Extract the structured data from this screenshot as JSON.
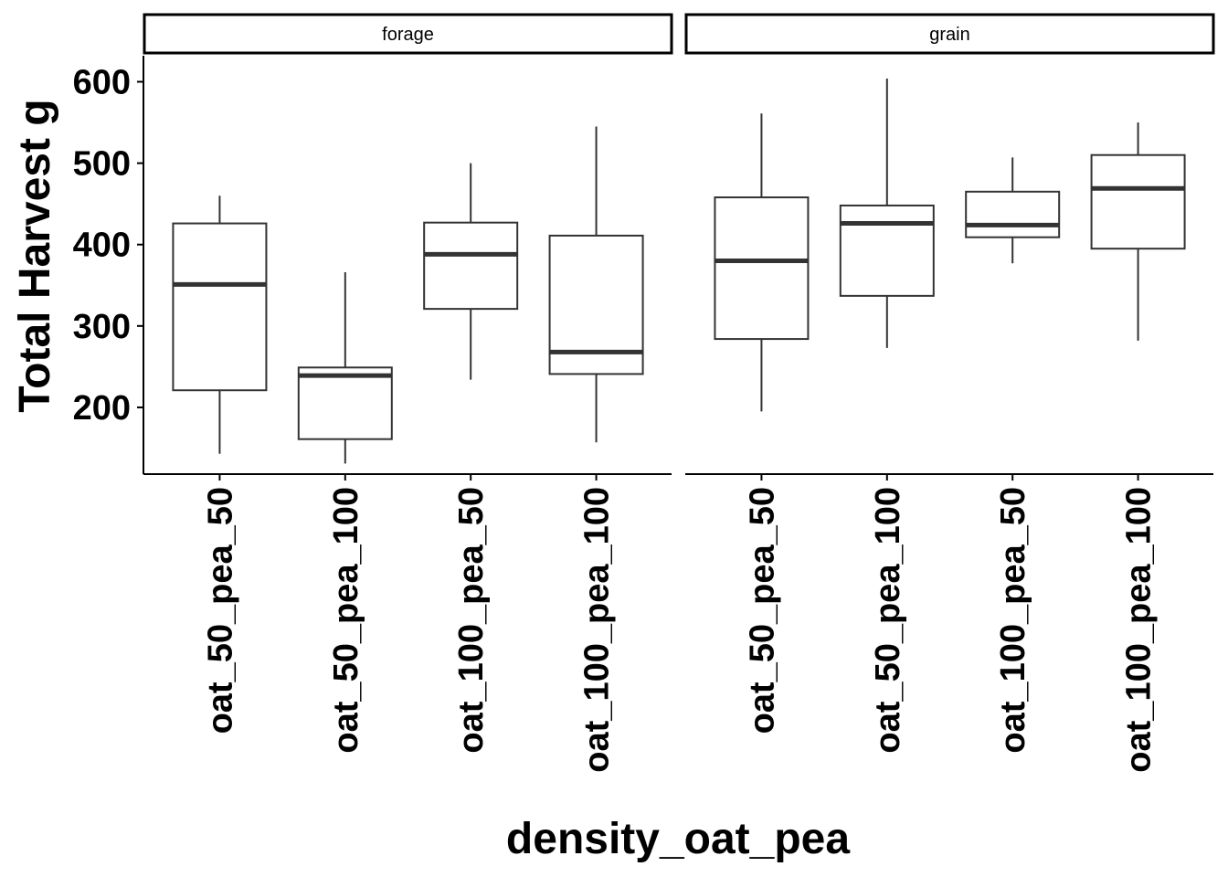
{
  "chart_data": {
    "type": "boxplot",
    "xlabel": "density_oat_pea",
    "ylabel": "Total Harvest g",
    "ylim": [
      118,
      632
    ],
    "yticks": [
      200,
      300,
      400,
      500,
      600
    ],
    "grid": false,
    "legend": "none",
    "categories": [
      "oat_50_pea_50",
      "oat_50_pea_100",
      "oat_100_pea_50",
      "oat_100_pea_100"
    ],
    "facets": [
      {
        "label": "forage",
        "boxes": [
          {
            "category": "oat_50_pea_50",
            "min": 143,
            "q1": 221,
            "median": 351,
            "q3": 426,
            "max": 460
          },
          {
            "category": "oat_50_pea_100",
            "min": 131,
            "q1": 161,
            "median": 239,
            "q3": 249,
            "max": 366
          },
          {
            "category": "oat_100_pea_50",
            "min": 234,
            "q1": 321,
            "median": 388,
            "q3": 427,
            "max": 500
          },
          {
            "category": "oat_100_pea_100",
            "min": 157,
            "q1": 241,
            "median": 268,
            "q3": 411,
            "max": 545
          }
        ]
      },
      {
        "label": "grain",
        "boxes": [
          {
            "category": "oat_50_pea_50",
            "min": 195,
            "q1": 284,
            "median": 380,
            "q3": 458,
            "max": 561
          },
          {
            "category": "oat_50_pea_100",
            "min": 273,
            "q1": 337,
            "median": 426,
            "q3": 448,
            "max": 604
          },
          {
            "category": "oat_100_pea_50",
            "min": 377,
            "q1": 409,
            "median": 424,
            "q3": 465,
            "max": 507
          },
          {
            "category": "oat_100_pea_100",
            "min": 282,
            "q1": 395,
            "median": 469,
            "q3": 510,
            "max": 550
          }
        ]
      }
    ],
    "colors": {
      "box_line": "#333333",
      "box_fill": "#ffffff",
      "axis": "#000000"
    }
  }
}
